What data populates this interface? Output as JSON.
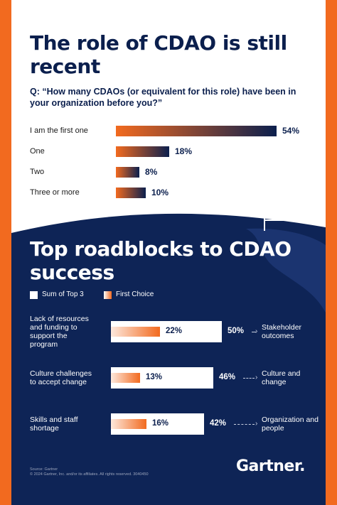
{
  "colors": {
    "navy": "#0b1f4d",
    "dark_bg": "#0e2456",
    "orange": "#f26a1f",
    "white": "#ffffff"
  },
  "heading": {
    "title": "The role of CDAO is still recent",
    "question": "Q: “How many CDAOs (or equivalent for this role) have been in your organization before you?”"
  },
  "section2": {
    "title": "Top roadblocks to CDAO success",
    "legend": [
      "Sum of Top 3",
      "First Choice"
    ]
  },
  "footer": {
    "source_line1": "Source: Gartner",
    "source_line2": "© 2024 Gartner, Inc. and/or its affiliates. All rights reserved. 3040450",
    "logo": "Gartner."
  },
  "icons": [
    "flag-icon"
  ],
  "chart_data": [
    {
      "type": "bar",
      "orientation": "horizontal",
      "categories": [
        "I am the first one",
        "One",
        "Two",
        "Three or more"
      ],
      "values": [
        54,
        18,
        8,
        10
      ],
      "value_labels": [
        "54%",
        "18%",
        "8%",
        "10%"
      ],
      "unit": "%",
      "xlim": [
        0,
        54
      ]
    },
    {
      "type": "bar",
      "orientation": "horizontal",
      "categories": [
        "Lack of resources and funding to support the program",
        "Culture challenges to accept change",
        "Skills and staff shortage"
      ],
      "series": [
        {
          "name": "Sum of Top 3",
          "values": [
            50,
            46,
            42
          ],
          "labels": [
            "50%",
            "46%",
            "42%"
          ]
        },
        {
          "name": "First Choice",
          "values": [
            22,
            13,
            16
          ],
          "labels": [
            "22%",
            "13%",
            "16%"
          ]
        }
      ],
      "outcomes": [
        "Stakeholder outcomes",
        "Culture and change",
        "Organization and people"
      ],
      "unit": "%",
      "xlim": [
        0,
        50
      ]
    }
  ]
}
